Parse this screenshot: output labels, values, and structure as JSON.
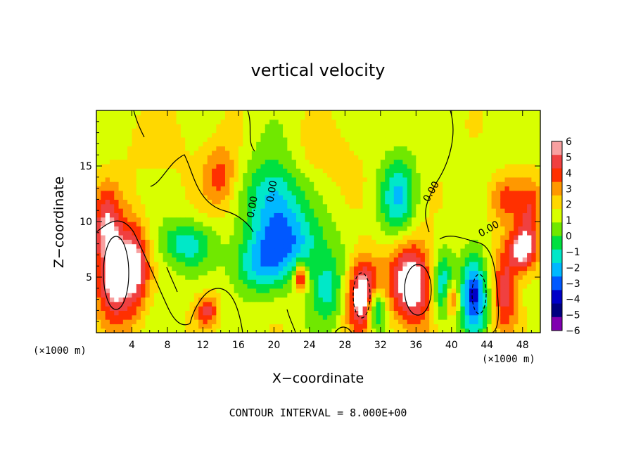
{
  "chart_data": {
    "type": "heatmap",
    "title": "vertical velocity",
    "xlabel": "X−coordinate",
    "ylabel": "Z−coordinate",
    "x_unit_left": "(×1000 m)",
    "x_unit_right": "(×1000 m)",
    "note": "CONTOUR INTERVAL = 8.000E+00",
    "xlim": [
      0,
      50
    ],
    "ylim": [
      0,
      20
    ],
    "x_ticks": [
      4,
      8,
      12,
      16,
      20,
      24,
      28,
      32,
      36,
      40,
      44,
      48
    ],
    "y_ticks": [
      5,
      10,
      15
    ],
    "contour_labels": [
      "0.00",
      "0.00",
      "0.00",
      "0.00"
    ],
    "colorbar": {
      "ticks": [
        "6",
        "5",
        "4",
        "3",
        "2",
        "1",
        "0",
        "−1",
        "−2",
        "−3",
        "−4",
        "−5",
        "−6"
      ],
      "colors": [
        "#f8a0a0",
        "#f04040",
        "#ff3000",
        "#ff9800",
        "#ffd800",
        "#d8ff00",
        "#70e800",
        "#00e040",
        "#00e8c8",
        "#00b8ff",
        "#0058ff",
        "#0000c8",
        "#000080",
        "#8000b0"
      ]
    },
    "blobs": [
      {
        "x": 2,
        "z": 5.5,
        "v": 6,
        "rx": 2.2,
        "rz": 4.5
      },
      {
        "x": 4.5,
        "z": 6,
        "v": 4,
        "rx": 1.5,
        "rz": 4
      },
      {
        "x": 1,
        "z": 10.5,
        "v": 3,
        "rx": 1.6,
        "rz": 3
      },
      {
        "x": 14,
        "z": 14,
        "v": 3,
        "rx": 2,
        "rz": 3
      },
      {
        "x": 12.5,
        "z": 2,
        "v": 3.5,
        "rx": 1.3,
        "rz": 1.5
      },
      {
        "x": 10,
        "z": 8,
        "v": -3,
        "rx": 3,
        "rz": 2
      },
      {
        "x": 20,
        "z": 12,
        "v": -4,
        "rx": 3,
        "rz": 4
      },
      {
        "x": 22,
        "z": 8,
        "v": -3.5,
        "rx": 4,
        "rz": 3
      },
      {
        "x": 18,
        "z": 6,
        "v": -3,
        "rx": 3,
        "rz": 2.5
      },
      {
        "x": 23,
        "z": 5,
        "v": 5,
        "rx": 0.7,
        "rz": 1.2
      },
      {
        "x": 26,
        "z": 4,
        "v": -3,
        "rx": 2,
        "rz": 3
      },
      {
        "x": 30,
        "z": 3.5,
        "v": 6,
        "rx": 1.8,
        "rz": 3.5
      },
      {
        "x": 31.5,
        "z": 2,
        "v": -5,
        "rx": 1,
        "rz": 2
      },
      {
        "x": 34,
        "z": 12,
        "v": -3.5,
        "rx": 2,
        "rz": 4
      },
      {
        "x": 35.5,
        "z": 4.5,
        "v": 6,
        "rx": 2.5,
        "rz": 4
      },
      {
        "x": 39,
        "z": 4,
        "v": -4,
        "rx": 1.2,
        "rz": 3
      },
      {
        "x": 40,
        "z": 3,
        "v": 4,
        "rx": 0.8,
        "rz": 1.5
      },
      {
        "x": 42.5,
        "z": 3.5,
        "v": -6,
        "rx": 1.5,
        "rz": 3.5
      },
      {
        "x": 46,
        "z": 4,
        "v": 4,
        "rx": 1.4,
        "rz": 4
      },
      {
        "x": 48,
        "z": 7.5,
        "v": 5.5,
        "rx": 1.5,
        "rz": 2
      },
      {
        "x": 49,
        "z": 11,
        "v": 3,
        "rx": 1.5,
        "rz": 3
      },
      {
        "x": 46,
        "z": 12,
        "v": 2.5,
        "rx": 2,
        "rz": 2
      },
      {
        "x": 26,
        "z": 16,
        "v": 1,
        "rx": 4,
        "rz": 3
      },
      {
        "x": 7,
        "z": 17,
        "v": 1,
        "rx": 4,
        "rz": 3
      }
    ]
  }
}
